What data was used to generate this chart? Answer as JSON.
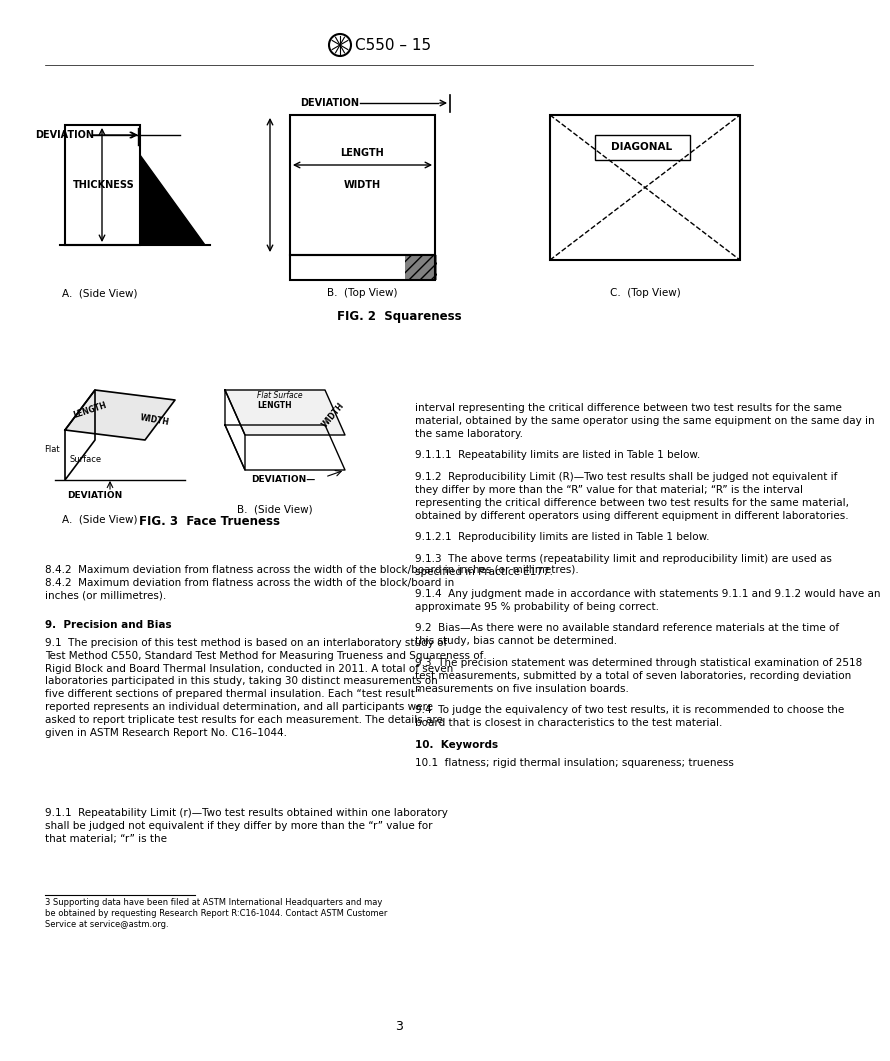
{
  "title": "C550 – 15",
  "fig2_title": "FIG. 2  Squareness",
  "fig3_title": "FIG. 3  Face Trueness",
  "page_number": "3",
  "background_color": "#ffffff",
  "text_color": "#000000",
  "section9_title": "9.  Precision and Bias",
  "section10_title": "10.  Keywords",
  "section84_text": "8.4.2  Maximum deviation from flatness across the width of the block/board in inches (or millimetres).",
  "right_col_text_1": "interval representing the critical difference between two test results for the same material, obtained by the same operator using the same equipment on the same day in the same laboratory.",
  "right_col_text_911": "9.1.1.1  Repeatability limits are listed in Table 1 below.",
  "right_col_text_912_head": "9.1.2  Reproducibility Limit (R)—Two test results shall be judged not equivalent if they differ by more than the “R” value for that material; “R” is the interval representing the critical difference between two test results for the same material, obtained by different operators using different equipment in different laboratories.",
  "right_col_text_9121": "9.1.2.1  Reproducibility limits are listed in Table 1 below.",
  "right_col_text_913": "9.1.3  The above terms (repeatability limit and reproducibility limit) are used as specified in Practice E177.",
  "right_col_text_914": "9.1.4  Any judgment made in accordance with statements 9.1.1 and 9.1.2 would have an approximate 95 % probability of being correct.",
  "right_col_text_92": "9.2  Bias—As there were no available standard reference materials at the time of this study, bias cannot be determined.",
  "right_col_text_93": "9.3  The precision statement was determined through statistical examination of 2518 test measurements, submitted by a total of seven laboratories, recording deviation measurements on five insulation boards.",
  "right_col_text_94": "9.4  To judge the equivalency of two test results, it is recommended to choose the board that is closest in characteristics to the test material.",
  "keywords_text": "10.1  flatness; rigid thermal insulation; squareness; trueness",
  "footnote_text": "3 Supporting data have been filed at ASTM International Headquarters and may be obtained by requesting Research Report R:C16-1044. Contact ASTM Customer Service at service@astm.org."
}
